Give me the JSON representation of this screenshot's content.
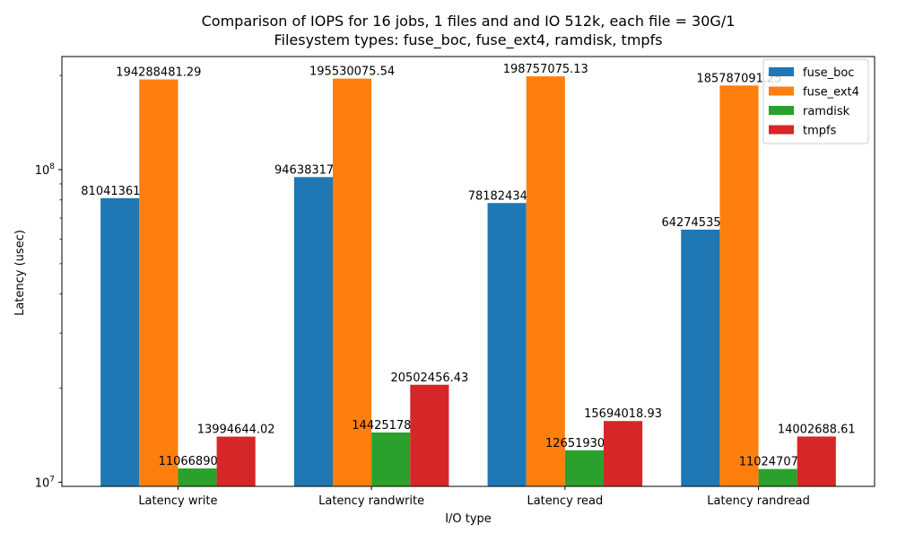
{
  "chart_data": {
    "type": "bar",
    "title_line1": "Comparison of IOPS for 16 jobs, 1 files and  and IO 512k, each file = 30G/1",
    "title_line2": "Filesystem types: fuse_boc, fuse_ext4, ramdisk, tmpfs",
    "xlabel": "I/O type",
    "ylabel": "Latency (usec)",
    "yscale": "log",
    "ylim": [
      9700000,
      230000000
    ],
    "y_ticks": [
      {
        "value": 10000000,
        "base": "10",
        "exp": "7"
      },
      {
        "value": 100000000,
        "base": "10",
        "exp": "8"
      }
    ],
    "minor_ticks": [
      20000000,
      30000000,
      40000000,
      50000000,
      60000000,
      70000000,
      80000000,
      90000000,
      200000000
    ],
    "categories": [
      "Latency write",
      "Latency randwrite",
      "Latency read",
      "Latency randread"
    ],
    "series": [
      {
        "name": "fuse_boc",
        "color": "#1f77b4",
        "values": [
          81041361.62,
          94638317.21,
          78182434.29,
          64274535.29
        ],
        "labels": [
          "81041361.62",
          "94638317.21",
          "78182434.29",
          "64274535.29"
        ]
      },
      {
        "name": "fuse_ext4",
        "color": "#ff7f0e",
        "values": [
          194288481.29,
          195530075.54,
          198757075.13,
          185787091.25
        ],
        "labels": [
          "194288481.29",
          "195530075.54",
          "198757075.13",
          "185787091.25"
        ]
      },
      {
        "name": "ramdisk",
        "color": "#2ca02c",
        "values": [
          11066890.25,
          14425178.04,
          12651930.17,
          11024707.14
        ],
        "labels": [
          "11066890.25",
          "14425178.04",
          "12651930.17",
          "11024707.14"
        ]
      },
      {
        "name": "tmpfs",
        "color": "#d62728",
        "values": [
          13994644.02,
          20502456.43,
          15694018.93,
          14002688.61
        ],
        "labels": [
          "13994644.02",
          "20502456.43",
          "15694018.93",
          "14002688.61"
        ]
      }
    ],
    "legend_position": "top-right"
  }
}
